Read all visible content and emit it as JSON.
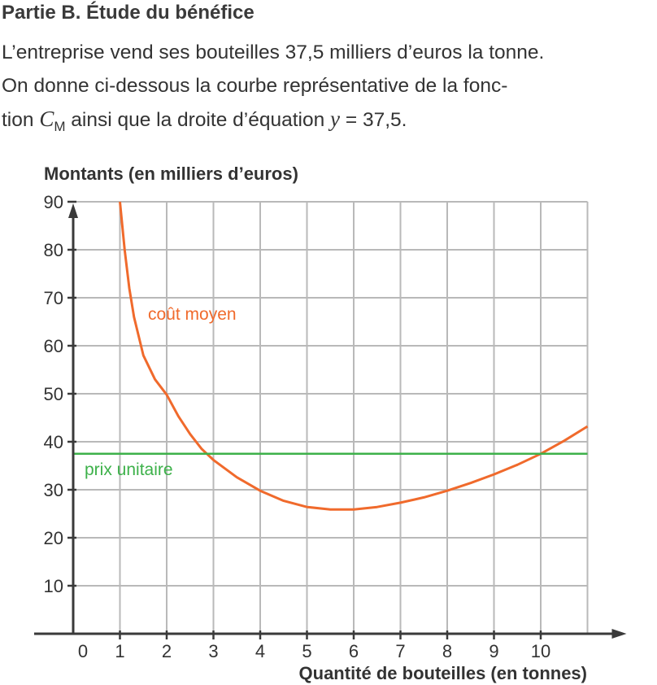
{
  "section": {
    "heading": "Partie B. Étude du bénéfice",
    "line1": "L’entreprise vend ses bouteilles 37,5 milliers d’euros la tonne.",
    "line2": "On donne ci-dessous la courbe représentative de la fonc-",
    "line3_a": "tion ",
    "line3_cm_letter": "C",
    "line3_cm_sub": "M",
    "line3_b": " ainsi que la droite d’équation ",
    "line3_y": "y",
    "line3_c": " = 37,5."
  },
  "chart_data": {
    "type": "line",
    "ylabel": "Montants (en milliers d’euros)",
    "xlabel": "Quantité de bouteilles (en tonnes)",
    "xlim": [
      0,
      11
    ],
    "ylim": [
      0,
      90
    ],
    "x_ticks": [
      "0",
      "1",
      "2",
      "3",
      "4",
      "5",
      "6",
      "7",
      "8",
      "9",
      "10"
    ],
    "y_ticks": [
      "10",
      "20",
      "30",
      "40",
      "50",
      "60",
      "70",
      "80",
      "90"
    ],
    "grid": true,
    "colors": {
      "cout_moyen": "#f06a2c",
      "prix_unitaire": "#3db14a",
      "grid": "#b9b9b9",
      "axis": "#3a3a3a"
    },
    "series": [
      {
        "name": "coût moyen",
        "x": [
          1,
          1.1,
          1.2,
          1.3,
          1.5,
          1.75,
          2,
          2.25,
          2.5,
          2.75,
          3,
          3.5,
          4,
          4.5,
          5,
          5.5,
          6,
          6.5,
          7,
          7.5,
          8,
          8.5,
          9,
          9.5,
          10,
          10.5,
          11
        ],
        "y": [
          90,
          80,
          72,
          66,
          58,
          53,
          49.8,
          45.3,
          41.6,
          38.5,
          36.2,
          32.6,
          29.8,
          27.7,
          26.4,
          25.9,
          25.9,
          26.4,
          27.3,
          28.4,
          29.8,
          31.4,
          33.2,
          35.2,
          37.5,
          40.2,
          43.2
        ]
      },
      {
        "name": "prix unitaire",
        "x": [
          0,
          11
        ],
        "y": [
          37.5,
          37.5
        ]
      }
    ]
  }
}
